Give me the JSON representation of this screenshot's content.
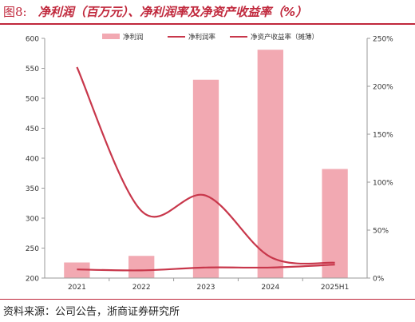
{
  "figure": {
    "number": "图8:",
    "title": "净利润（百万元）、净利润率及净资产收益率（%）",
    "source": "资料来源：公司公告，浙商证券研究所"
  },
  "colors": {
    "accent": "#c0283c",
    "bar": "#f2a9b2",
    "line": "#c8374b",
    "axis": "#9a9a9a",
    "text": "#333333"
  },
  "chart_data": {
    "type": "bar",
    "categories": [
      "2021",
      "2022",
      "2023",
      "2024",
      "2025H1"
    ],
    "series": [
      {
        "name": "净利润",
        "type": "bar",
        "axis": "left",
        "values": [
          226,
          237,
          531,
          581,
          382
        ]
      },
      {
        "name": "净利润率",
        "type": "line",
        "axis": "right",
        "values": [
          220,
          70,
          86,
          22,
          16
        ]
      },
      {
        "name": "净资产收益率（摊薄）",
        "type": "line",
        "axis": "right",
        "values": [
          9,
          8,
          11,
          11,
          14
        ]
      }
    ],
    "y_left": {
      "min": 200,
      "max": 600,
      "ticks": [
        "200",
        "250",
        "300",
        "350",
        "400",
        "450",
        "500",
        "550",
        "600"
      ]
    },
    "y_right": {
      "min": 0,
      "max": 250,
      "ticks": [
        "0%",
        "50%",
        "100%",
        "150%",
        "200%",
        "250%"
      ]
    },
    "grid": false,
    "legend": "top"
  }
}
